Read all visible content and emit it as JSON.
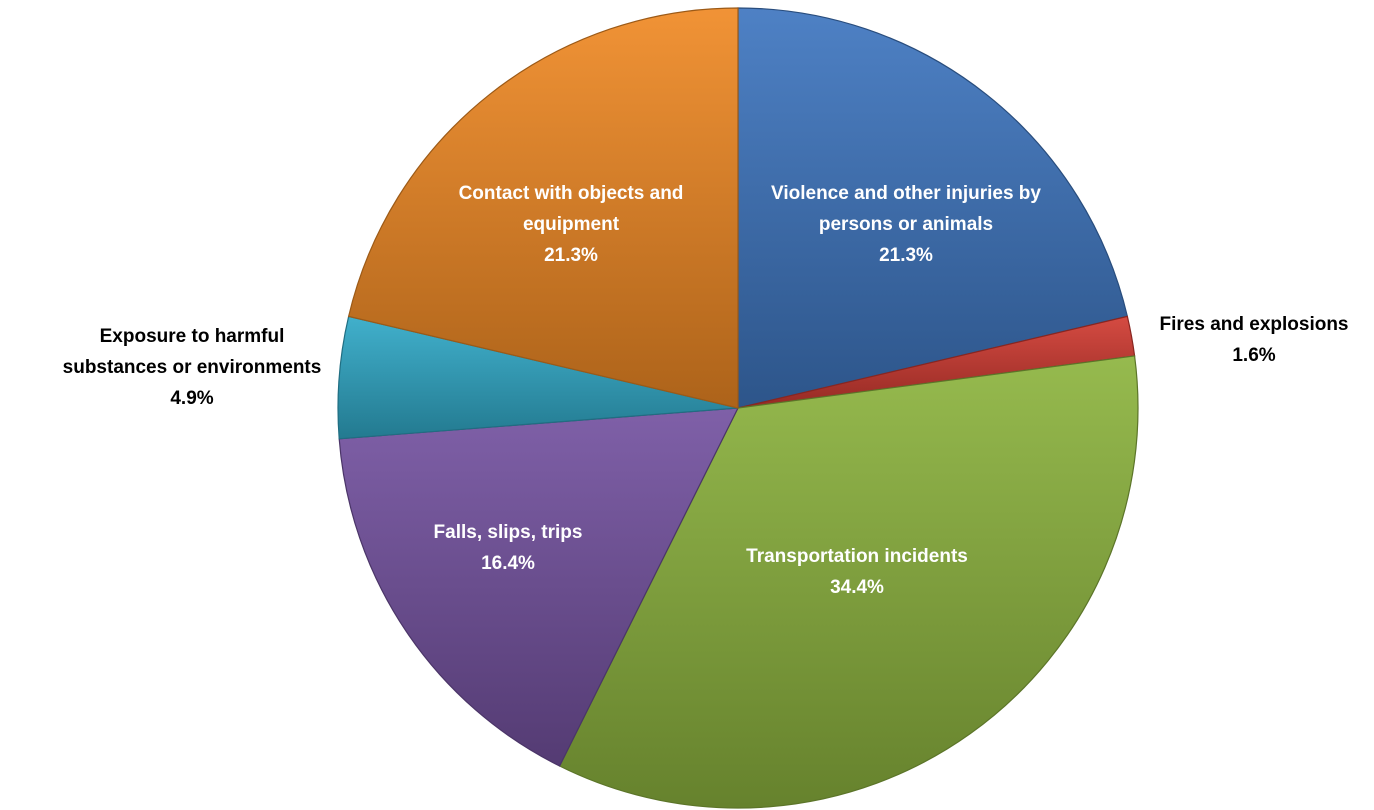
{
  "chart_data": {
    "type": "pie",
    "title": "",
    "start_angle_deg": 0,
    "direction": "clockwise",
    "slices": [
      {
        "label_lines": [
          "Violence and other injuries by",
          "persons or animals"
        ],
        "value": 21.3,
        "value_text": "21.3%",
        "color": "#3f76c0",
        "label_placement": "inside",
        "label_color": "#ffffff"
      },
      {
        "label_lines": [
          "Fires and explosions"
        ],
        "value": 1.6,
        "value_text": "1.6%",
        "color": "#d13b32",
        "label_placement": "outside-right",
        "label_color": "#000000"
      },
      {
        "label_lines": [
          "Transportation incidents"
        ],
        "value": 34.4,
        "value_text": "34.4%",
        "color": "#8db43f",
        "label_placement": "inside",
        "label_color": "#ffffff"
      },
      {
        "label_lines": [
          "Falls, slips, trips"
        ],
        "value": 16.4,
        "value_text": "16.4%",
        "color": "#7452a0",
        "label_placement": "inside",
        "label_color": "#ffffff"
      },
      {
        "label_lines": [
          "Exposure to harmful",
          "substances or environments"
        ],
        "value": 4.9,
        "value_text": "4.9%",
        "color": "#31a9c8",
        "label_placement": "outside-left",
        "label_color": "#000000"
      },
      {
        "label_lines": [
          "Contact with objects and",
          "equipment"
        ],
        "value": 21.3,
        "value_text": "21.3%",
        "color": "#f08a24",
        "label_placement": "inside",
        "label_color": "#ffffff"
      }
    ]
  }
}
